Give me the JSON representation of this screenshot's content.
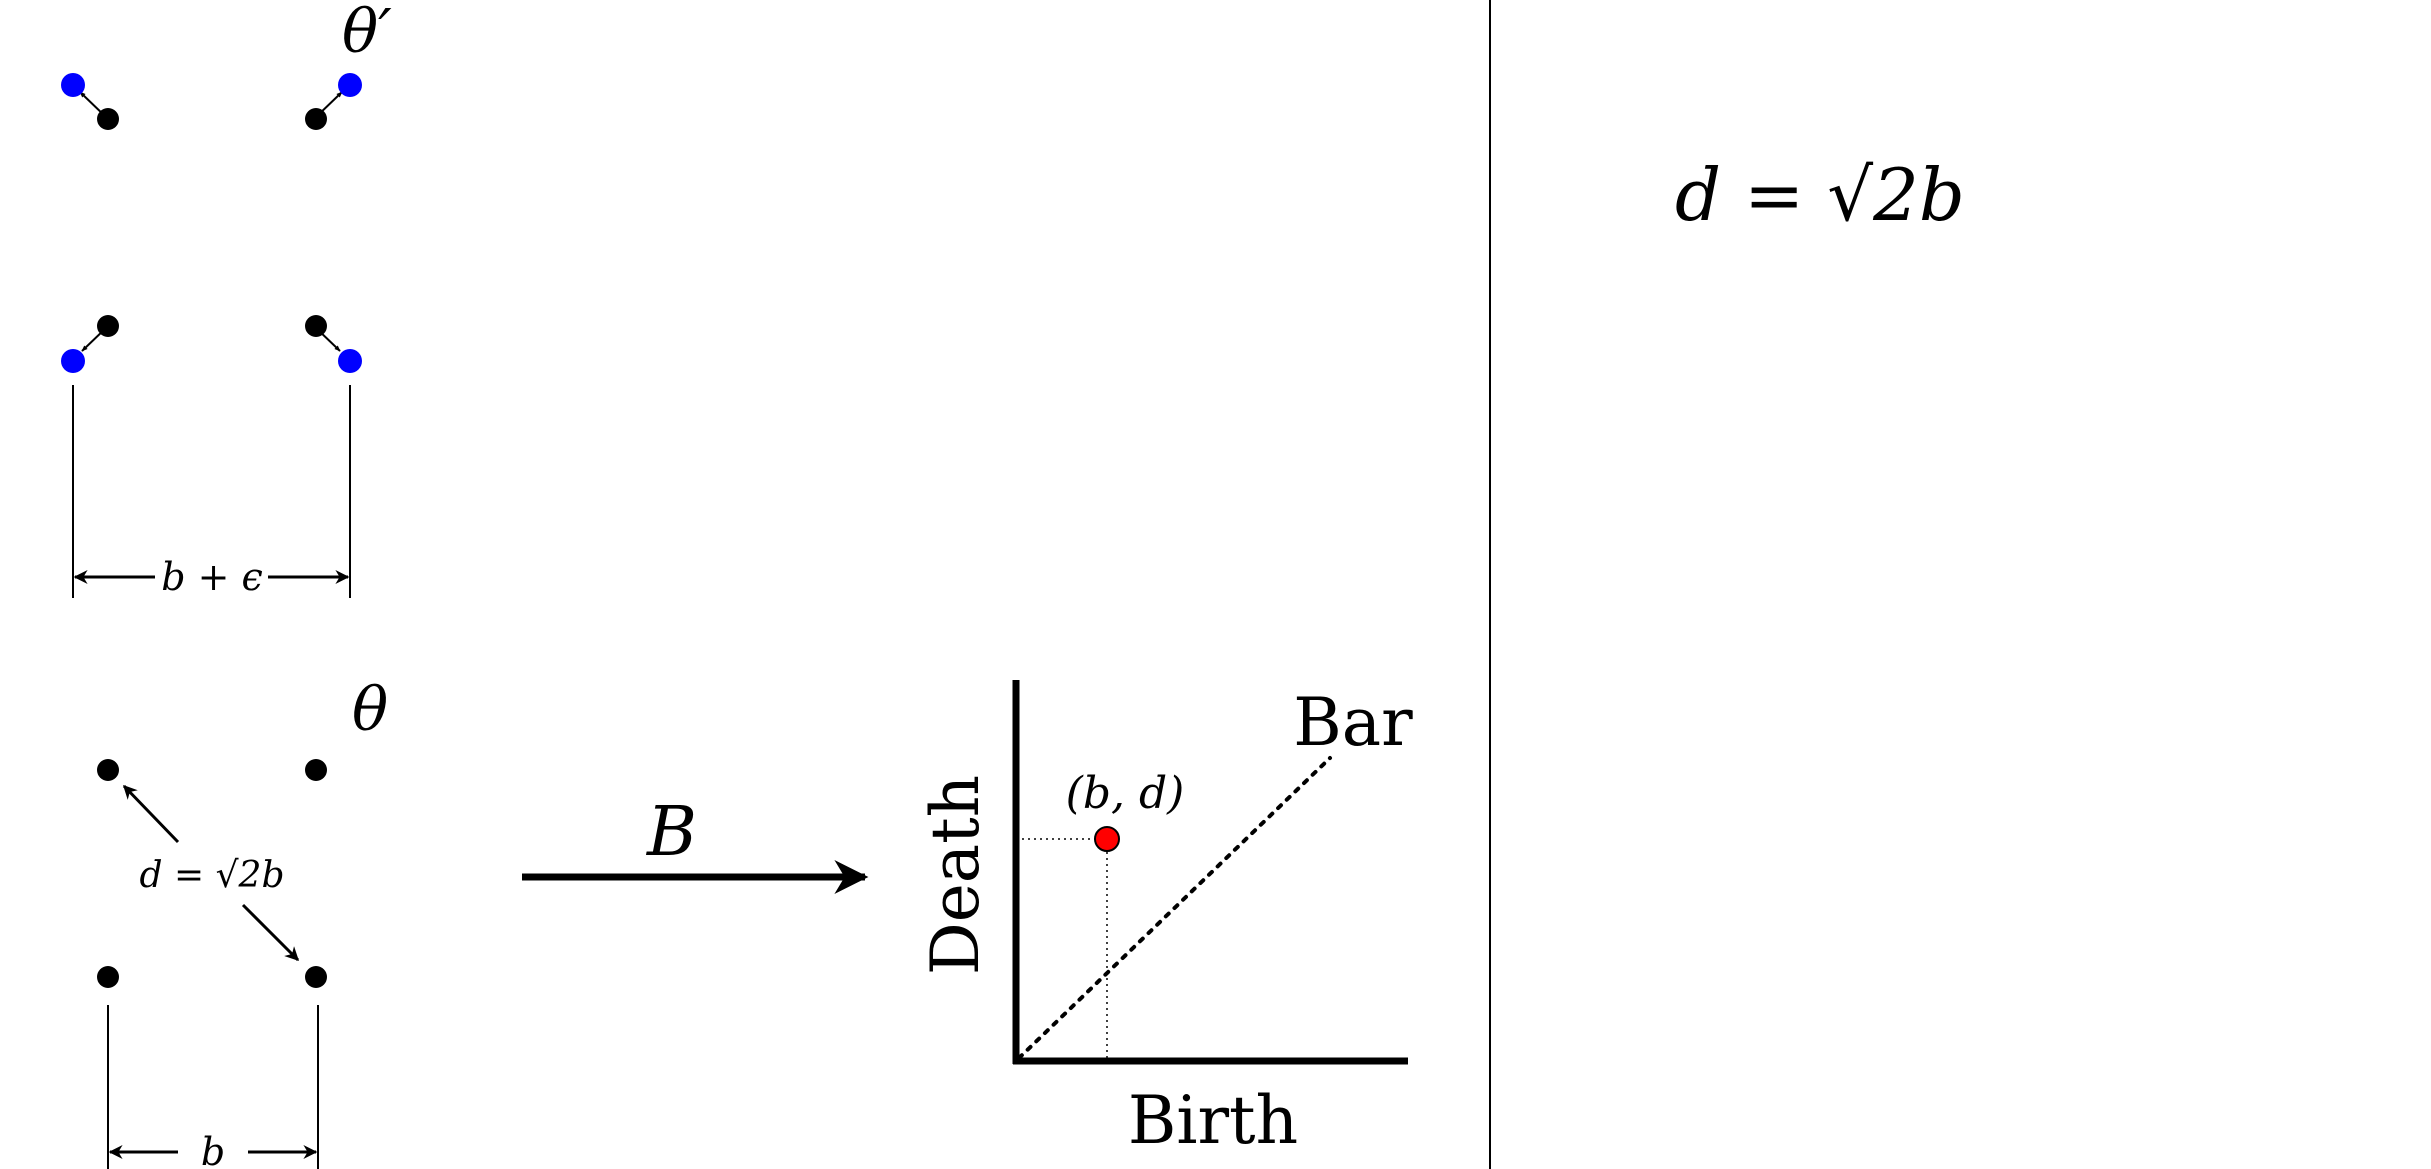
{
  "top_config": {
    "label": "θ′",
    "width_label": "b + ϵ",
    "colors": {
      "original_point": "#000000",
      "perturbed_point": "#0000ff"
    }
  },
  "bottom_config": {
    "label": "θ",
    "distance_label": "d = √2b",
    "width_label": "b"
  },
  "map_arrow": {
    "label": "B"
  },
  "persistence_diagram": {
    "x_axis_label": "Birth",
    "y_axis_label": "Death",
    "diagonal_label": "Bar",
    "point_label": "(b, d)",
    "point_color": "#ff0000"
  },
  "right_panel": {
    "equation": "d = √2b"
  }
}
